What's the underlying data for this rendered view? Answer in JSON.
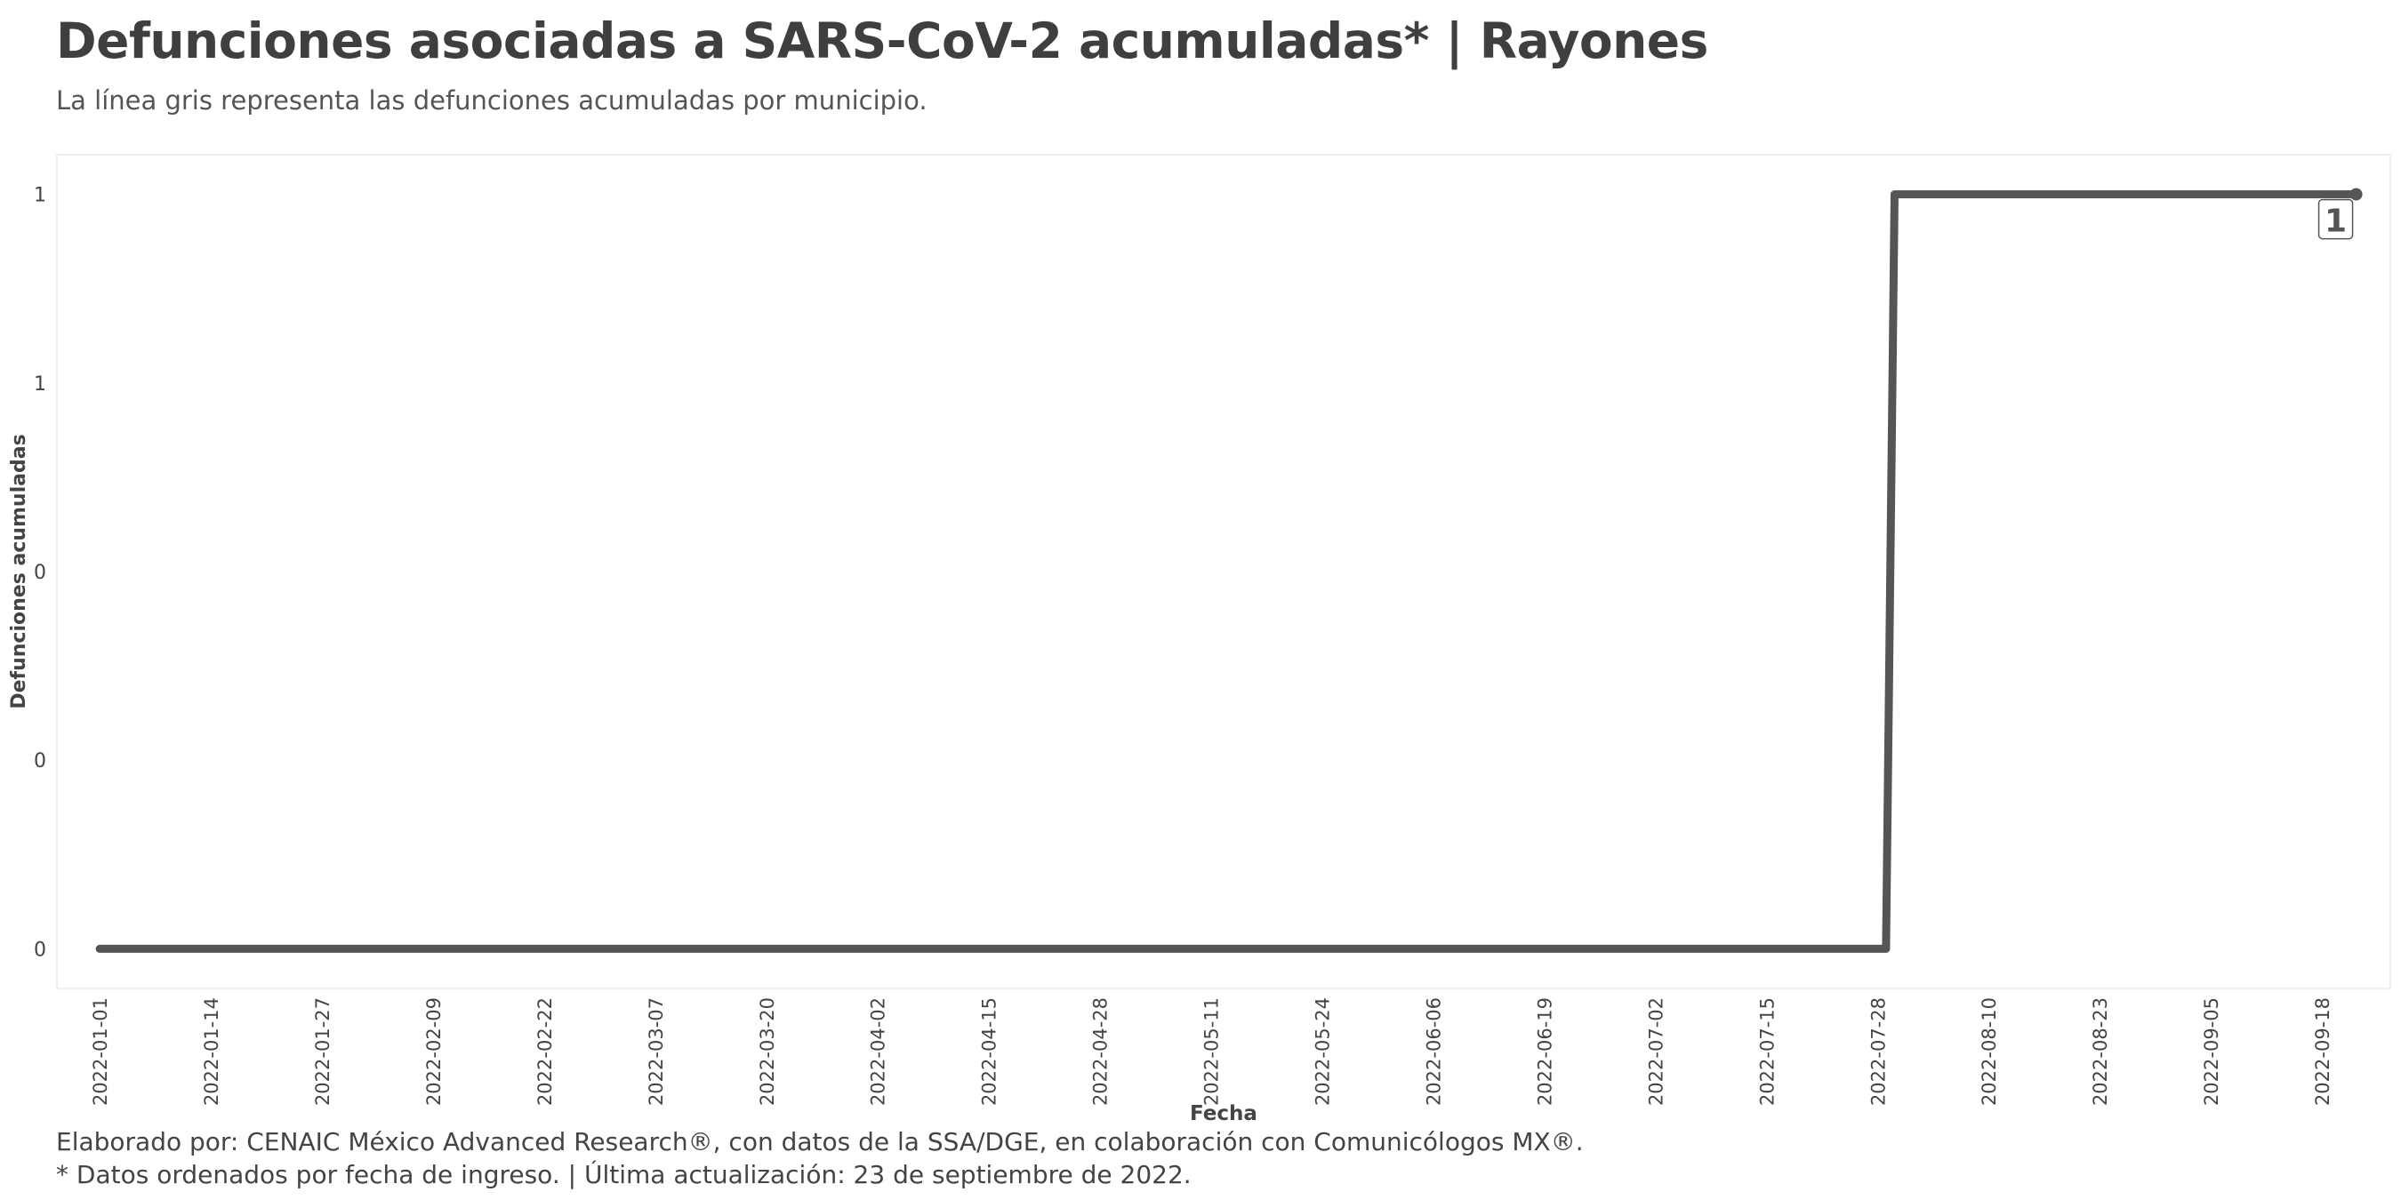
{
  "chart_data": {
    "type": "line",
    "title": "Defunciones asociadas a SARS-CoV-2 acumuladas* | Rayones",
    "subtitle": "La línea gris representa las defunciones acumuladas por municipio.",
    "xlabel": "Fecha",
    "ylabel": "Defunciones acumuladas",
    "x_ticks": [
      "2022-01-01",
      "2022-01-14",
      "2022-01-27",
      "2022-02-09",
      "2022-02-22",
      "2022-03-07",
      "2022-03-20",
      "2022-04-02",
      "2022-04-15",
      "2022-04-28",
      "2022-05-11",
      "2022-05-24",
      "2022-06-06",
      "2022-06-19",
      "2022-07-02",
      "2022-07-15",
      "2022-07-28",
      "2022-08-10",
      "2022-08-23",
      "2022-09-05",
      "2022-09-18"
    ],
    "y_tick_labels": [
      "0",
      "0",
      "0",
      "1",
      "1"
    ],
    "y_tick_values": [
      0,
      0.25,
      0.5,
      0.75,
      1
    ],
    "ylim": [
      -0.0525,
      1.0525
    ],
    "xlim": [
      "2021-12-27",
      "2022-09-26"
    ],
    "grid": false,
    "series": [
      {
        "color": "#555555",
        "points": [
          {
            "x": "2022-01-01",
            "y": 0
          },
          {
            "x": "2022-07-29",
            "y": 0
          },
          {
            "x": "2022-07-30",
            "y": 1
          },
          {
            "x": "2022-09-22",
            "y": 1
          }
        ]
      }
    ],
    "annotation": {
      "x": "2022-09-22",
      "y": 1,
      "label": "1"
    }
  },
  "caption": {
    "line1": "Elaborado por: CENAIC México Advanced Research®, con datos de la SSA/DGE, en colaboración con Comunicólogos MX®.",
    "line2": "* Datos ordenados por fecha de ingreso. | Última actualización: 23 de septiembre de 2022."
  }
}
